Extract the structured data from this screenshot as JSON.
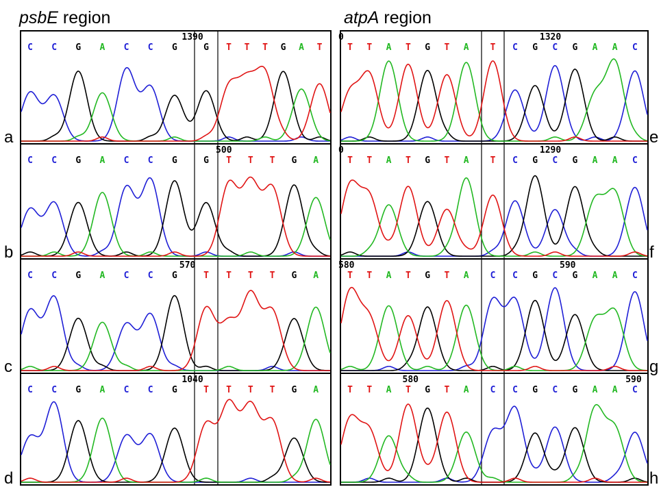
{
  "titles": [
    {
      "italic": "psbE",
      "rest": " region"
    },
    {
      "italic": "atpA",
      "rest": " region"
    }
  ],
  "colors": {
    "C": "#1f1fd6",
    "G": "#000000",
    "A": "#22b822",
    "T": "#e01414"
  },
  "panels": [
    {
      "label": "a",
      "side": "left",
      "row": 0,
      "pos": "1390",
      "pos_at": 6.3,
      "bases": [
        "C",
        "C",
        "G",
        "A",
        "C",
        "C",
        "G",
        "G",
        "T",
        "T",
        "T",
        "G",
        "A",
        "T"
      ],
      "split_after": 7
    },
    {
      "label": "b",
      "side": "left",
      "row": 1,
      "pos": "500",
      "pos_at": 7.4,
      "bases": [
        "C",
        "C",
        "G",
        "A",
        "C",
        "C",
        "G",
        "G",
        "T",
        "T",
        "T",
        "G",
        "A"
      ],
      "split_after": 7
    },
    {
      "label": "c",
      "side": "left",
      "row": 2,
      "pos": "570",
      "pos_at": 6.2,
      "bases": [
        "C",
        "C",
        "G",
        "A",
        "C",
        "C",
        "G",
        "T",
        "T",
        "T",
        "T",
        "G",
        "A"
      ],
      "split_after": 7
    },
    {
      "label": "d",
      "side": "left",
      "row": 3,
      "pos": "1040",
      "pos_at": 6.3,
      "bases": [
        "C",
        "C",
        "G",
        "A",
        "C",
        "C",
        "G",
        "T",
        "T",
        "T",
        "T",
        "G",
        "A"
      ],
      "split_after": 7
    },
    {
      "label": "e",
      "side": "right",
      "row": 0,
      "pos": "0",
      "pos_left": "0",
      "pos2": "1320",
      "pos2_at": 1.3,
      "bases": [
        "T",
        "T",
        "A",
        "T",
        "G",
        "T",
        "A",
        "T",
        "C",
        "G",
        "C",
        "G",
        "A",
        "A",
        "C"
      ],
      "split_after": 7
    },
    {
      "label": "f",
      "side": "right",
      "row": 1,
      "pos": "0",
      "pos_left": "0",
      "pos2": "1290",
      "pos2_at": 1.3,
      "bases": [
        "T",
        "T",
        "A",
        "T",
        "G",
        "T",
        "A",
        "T",
        "C",
        "G",
        "C",
        "G",
        "A",
        "A",
        "C"
      ],
      "split_after": 7
    },
    {
      "label": "g",
      "side": "right",
      "row": 2,
      "pos": "580",
      "pos_left": "580",
      "pos2": "590",
      "pos2_at": 2.3,
      "bases": [
        "T",
        "T",
        "A",
        "T",
        "G",
        "T",
        "A",
        "C",
        "C",
        "G",
        "C",
        "G",
        "A",
        "A",
        "C"
      ],
      "split_after": 7
    },
    {
      "label": "h",
      "side": "right",
      "row": 3,
      "pos": "580",
      "pos_top": "580",
      "pos_top_at": 3.2,
      "pos2": "590",
      "pos2_at": 5.6,
      "bases": [
        "T",
        "T",
        "A",
        "T",
        "G",
        "T",
        "A",
        "C",
        "C",
        "G",
        "C",
        "G",
        "A",
        "A",
        "C"
      ],
      "split_after": 7
    }
  ]
}
